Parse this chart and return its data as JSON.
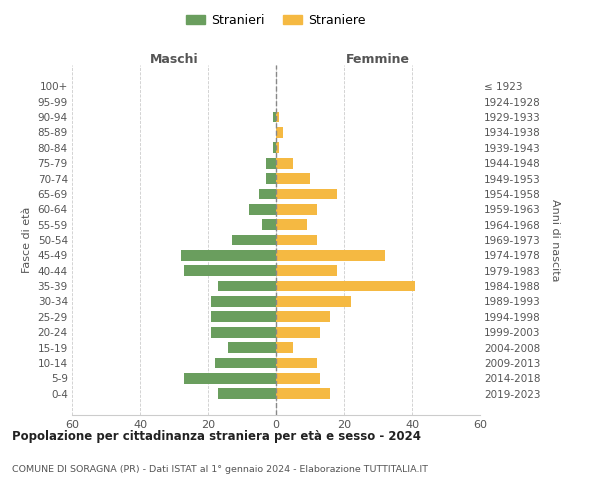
{
  "age_groups": [
    "0-4",
    "5-9",
    "10-14",
    "15-19",
    "20-24",
    "25-29",
    "30-34",
    "35-39",
    "40-44",
    "45-49",
    "50-54",
    "55-59",
    "60-64",
    "65-69",
    "70-74",
    "75-79",
    "80-84",
    "85-89",
    "90-94",
    "95-99",
    "100+"
  ],
  "birth_years": [
    "2019-2023",
    "2014-2018",
    "2009-2013",
    "2004-2008",
    "1999-2003",
    "1994-1998",
    "1989-1993",
    "1984-1988",
    "1979-1983",
    "1974-1978",
    "1969-1973",
    "1964-1968",
    "1959-1963",
    "1954-1958",
    "1949-1953",
    "1944-1948",
    "1939-1943",
    "1934-1938",
    "1929-1933",
    "1924-1928",
    "≤ 1923"
  ],
  "maschi": [
    17,
    27,
    18,
    14,
    19,
    19,
    19,
    17,
    27,
    28,
    13,
    4,
    8,
    5,
    3,
    3,
    1,
    0,
    1,
    0,
    0
  ],
  "femmine": [
    16,
    13,
    12,
    5,
    13,
    16,
    22,
    41,
    18,
    32,
    12,
    9,
    12,
    18,
    10,
    5,
    1,
    2,
    1,
    0,
    0
  ],
  "color_maschi": "#6a9e5e",
  "color_femmine": "#f5b942",
  "title": "Popolazione per cittadinanza straniera per età e sesso - 2024",
  "subtitle": "COMUNE DI SORAGNA (PR) - Dati ISTAT al 1° gennaio 2024 - Elaborazione TUTTITALIA.IT",
  "ylabel_left": "Fasce di età",
  "ylabel_right": "Anni di nascita",
  "xlabel_left": "Maschi",
  "xlabel_right": "Femmine",
  "legend_maschi": "Stranieri",
  "legend_femmine": "Straniere",
  "xlim": 60,
  "background_color": "#ffffff",
  "grid_color": "#cccccc"
}
